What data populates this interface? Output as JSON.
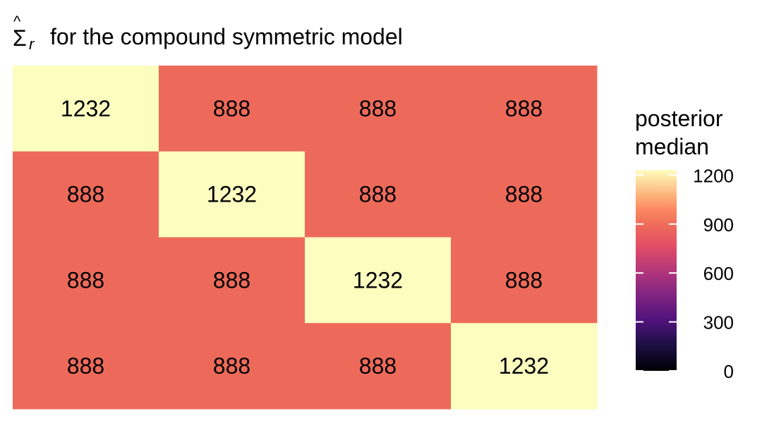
{
  "chart_data": {
    "type": "heatmap",
    "title": {
      "symbol": "Σ",
      "hat": "^",
      "subscript": "r",
      "text": "for the compound symmetric model"
    },
    "rows": 4,
    "cols": 4,
    "values": [
      [
        1232,
        888,
        888,
        888
      ],
      [
        888,
        1232,
        888,
        888
      ],
      [
        888,
        888,
        1232,
        888
      ],
      [
        888,
        888,
        888,
        1232
      ]
    ],
    "labels": [
      [
        "1232",
        "888",
        "888",
        "888"
      ],
      [
        "888",
        "1232",
        "888",
        "888"
      ],
      [
        "888",
        "888",
        "1232",
        "888"
      ],
      [
        "888",
        "888",
        "888",
        "1232"
      ]
    ],
    "legend": {
      "title_line1": "posterior",
      "title_line2": "median",
      "min": 0,
      "max": 1232,
      "ticks": [
        0,
        300,
        600,
        900,
        1200
      ],
      "tick_labels": [
        "0",
        "300",
        "600",
        "900",
        "1200"
      ]
    },
    "colors": {
      "high": "#FCFDBF",
      "low": "#ED6A5A",
      "text": "#000000"
    },
    "colormap": "magma"
  }
}
